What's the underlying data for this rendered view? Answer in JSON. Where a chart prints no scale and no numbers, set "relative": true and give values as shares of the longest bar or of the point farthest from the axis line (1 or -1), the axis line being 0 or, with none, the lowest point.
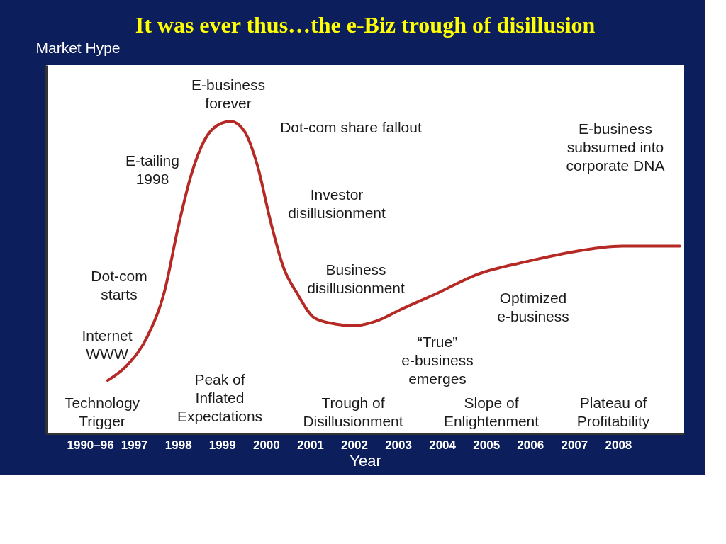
{
  "chart_data": {
    "type": "line",
    "title": "It was ever thus…the e-Biz trough of disillusion",
    "xlabel": "Year",
    "ylabel": "Market Hype",
    "relative": true,
    "grid": false,
    "marker": "none",
    "line_style": "solid",
    "xlim": [
      1995,
      2009.5
    ],
    "xticks": [
      {
        "value": 1996,
        "label": "1990–96"
      },
      1997,
      1998,
      1999,
      2000,
      2001,
      2002,
      2003,
      2004,
      2005,
      2006,
      2007,
      2008
    ],
    "series": [
      {
        "color": "#b52a25",
        "x": [
          1996.4,
          1996.85,
          1997.3,
          1997.7,
          1998.0,
          1998.3,
          1998.6,
          1999.0,
          1999.2,
          1999.5,
          1999.8,
          2000.1,
          2000.4,
          2000.7,
          2001.1,
          2001.6,
          2002.0,
          2002.5,
          2003.1,
          2003.9,
          2004.8,
          2005.9,
          2006.9,
          2008.1,
          2009.4
        ],
        "values": [
          0.17,
          0.22,
          0.31,
          0.46,
          0.66,
          0.83,
          0.94,
          0.995,
          1.0,
          0.97,
          0.86,
          0.68,
          0.53,
          0.45,
          0.37,
          0.35,
          0.345,
          0.36,
          0.4,
          0.45,
          0.51,
          0.55,
          0.58,
          0.6,
          0.6
        ]
      }
    ],
    "annotations": [
      "E-business\nforever",
      "Dot-com share fallout",
      "E-tailing\n1998",
      "Investor\ndisillusionment",
      "Dot-com\nstarts",
      "Business\ndisillusionment",
      "Optimized\ne-business",
      "E-business\nsubsumed into\ncorporate DNA",
      "Internet\nWWW",
      "“True”\ne-business\nemerges",
      "Technology\nTrigger",
      "Peak of\nInflated\nExpectations",
      "Trough of\nDisillusionment",
      "Slope of\nEnlightenment",
      "Plateau of\nProfitability"
    ]
  }
}
